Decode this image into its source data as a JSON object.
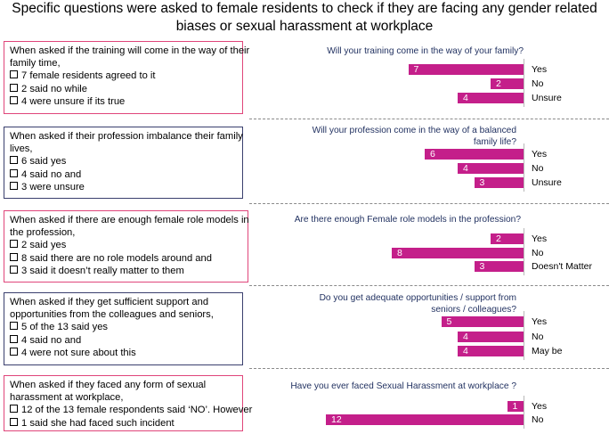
{
  "title": "Specific questions were asked to female residents to check  if they are facing any  gender related biases or  sexual harassment  at workplace",
  "colors": {
    "bar": "#c41f8a",
    "question_text": "#1f2f5f",
    "box_pink": "#e0457a",
    "box_navy": "#3a3f6e"
  },
  "boxes": [
    {
      "intro": [
        "When asked if the training will come in the way of their",
        "family time,"
      ],
      "items": [
        "7 female residents agreed to it",
        "2 said no while",
        "4 were unsure if its true"
      ]
    },
    {
      "intro": [
        "When asked if their profession imbalance their family",
        "lives,"
      ],
      "items": [
        "6 said yes",
        "4 said no and",
        "3 were unsure"
      ]
    },
    {
      "intro": [
        "When asked if there are enough female role models in",
        "the profession,"
      ],
      "items": [
        "2 said yes",
        "8 said there are no role models around and",
        "3 said it doesn’t really matter to them"
      ]
    },
    {
      "intro": [
        "When asked if they get sufficient support and",
        "opportunities from the colleagues and seniors,"
      ],
      "items": [
        "5 of the 13 said yes",
        "4 said no and",
        "4 were not sure about this"
      ]
    },
    {
      "intro": [
        "When asked if they faced any form of sexual",
        "harassment at workplace,"
      ],
      "items": [
        "12 of the 13 female respondents said ‘NO’. However",
        "1 said she had faced such incident"
      ]
    }
  ],
  "chart_data": [
    {
      "type": "bar",
      "title": [
        "Will your training come in the way of your family?"
      ],
      "categories": [
        "Yes",
        "No",
        "Unsure"
      ],
      "values": [
        7,
        2,
        4
      ]
    },
    {
      "type": "bar",
      "title": [
        "Will your profession come in the way of a balanced",
        "family life?"
      ],
      "categories": [
        "Yes",
        "No",
        "Unsure"
      ],
      "values": [
        6,
        4,
        3
      ]
    },
    {
      "type": "bar",
      "title": [
        "Are there enough Female role models in the profession?"
      ],
      "categories": [
        "Yes",
        "No",
        "Doesn't Matter"
      ],
      "values": [
        2,
        8,
        3
      ]
    },
    {
      "type": "bar",
      "title": [
        "Do you get adequate opportunities / support from",
        "seniors / colleagues?"
      ],
      "categories": [
        "Yes",
        "No",
        "May be"
      ],
      "values": [
        5,
        4,
        4
      ]
    },
    {
      "type": "bar",
      "title": [
        "Have you ever faced Sexual Harassment at workplace ?"
      ],
      "categories": [
        "Yes",
        "No"
      ],
      "values": [
        1,
        12
      ]
    }
  ]
}
